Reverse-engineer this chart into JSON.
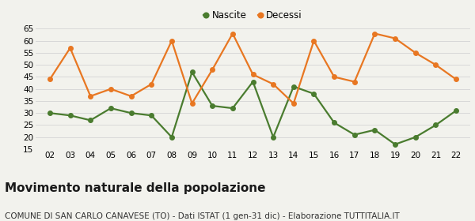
{
  "years": [
    2,
    3,
    4,
    5,
    6,
    7,
    8,
    9,
    10,
    11,
    12,
    13,
    14,
    15,
    16,
    17,
    18,
    19,
    20,
    21,
    22
  ],
  "nascite": [
    30,
    29,
    27,
    32,
    30,
    29,
    20,
    47,
    33,
    32,
    43,
    20,
    41,
    38,
    26,
    21,
    23,
    17,
    20,
    25,
    31
  ],
  "decessi": [
    44,
    57,
    37,
    40,
    37,
    42,
    60,
    34,
    48,
    63,
    46,
    42,
    34,
    60,
    45,
    43,
    63,
    61,
    55,
    50,
    44
  ],
  "nascite_color": "#4a7c2f",
  "decessi_color": "#e87722",
  "background_color": "#f2f2ed",
  "grid_color": "#d8d8d8",
  "ylim": [
    15,
    65
  ],
  "yticks": [
    15,
    20,
    25,
    30,
    35,
    40,
    45,
    50,
    55,
    60,
    65
  ],
  "title": "Movimento naturale della popolazione",
  "subtitle": "COMUNE DI SAN CARLO CANAVESE (TO) - Dati ISTAT (1 gen-31 dic) - Elaborazione TUTTITALIA.IT",
  "legend_nascite": "Nascite",
  "legend_decessi": "Decessi",
  "title_fontsize": 11,
  "subtitle_fontsize": 7.5,
  "marker_size": 4,
  "line_width": 1.6,
  "tick_fontsize": 7.5
}
